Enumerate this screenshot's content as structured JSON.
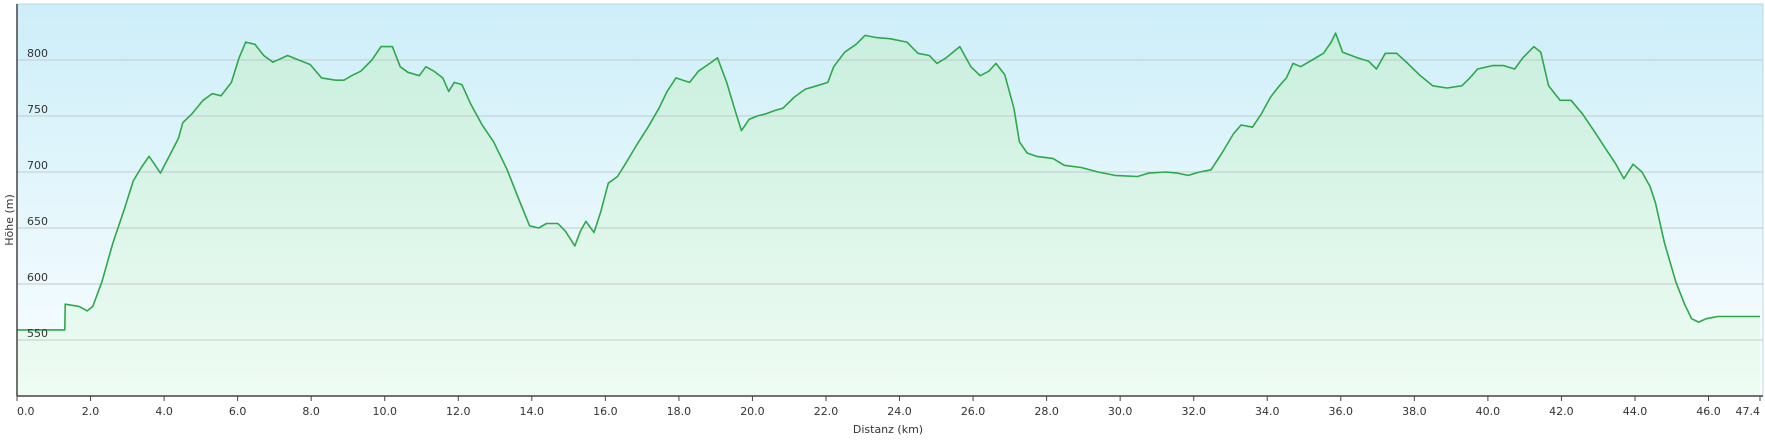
{
  "chart_data": {
    "type": "line",
    "xlabel": "Distanz  (km)",
    "ylabel": "Höhe (m)",
    "color": "#2ea84a",
    "grid": true,
    "xlim": [
      0,
      47.4
    ],
    "ylim": [
      500,
      850
    ],
    "xticks": [
      {
        "value": 0,
        "label": "0.0"
      },
      {
        "value": 2,
        "label": "2.0"
      },
      {
        "value": 4,
        "label": "4.0"
      },
      {
        "value": 6,
        "label": "6.0"
      },
      {
        "value": 8,
        "label": "8.0"
      },
      {
        "value": 10,
        "label": "10.0"
      },
      {
        "value": 12,
        "label": "12.0"
      },
      {
        "value": 14,
        "label": "14.0"
      },
      {
        "value": 16,
        "label": "16.0"
      },
      {
        "value": 18,
        "label": "18.0"
      },
      {
        "value": 20,
        "label": "20.0"
      },
      {
        "value": 22,
        "label": "22.0"
      },
      {
        "value": 24,
        "label": "24.0"
      },
      {
        "value": 26,
        "label": "26.0"
      },
      {
        "value": 28,
        "label": "28.0"
      },
      {
        "value": 30,
        "label": "30.0"
      },
      {
        "value": 32,
        "label": "32.0"
      },
      {
        "value": 34,
        "label": "34.0"
      },
      {
        "value": 36,
        "label": "36.0"
      },
      {
        "value": 38,
        "label": "38.0"
      },
      {
        "value": 40,
        "label": "40.0"
      },
      {
        "value": 42,
        "label": "42.0"
      },
      {
        "value": 44,
        "label": "44.0"
      },
      {
        "value": 46,
        "label": "46.0"
      },
      47.4
    ],
    "yticks": [
      550,
      600,
      650,
      700,
      750,
      800
    ],
    "x": [
      0,
      1.3,
      1.31,
      1.69,
      1.91,
      2.06,
      2.31,
      2.61,
      2.92,
      3.16,
      3.38,
      3.59,
      3.74,
      3.9,
      4.14,
      4.39,
      4.51,
      4.76,
      5.06,
      5.31,
      5.55,
      5.83,
      6.04,
      6.22,
      6.47,
      6.71,
      6.96,
      7.36,
      7.66,
      7.97,
      8.28,
      8.67,
      8.89,
      9.1,
      9.35,
      9.65,
      9.9,
      10.21,
      10.42,
      10.63,
      10.94,
      11.12,
      11.34,
      11.58,
      11.74,
      11.89,
      12.1,
      12.35,
      12.65,
      12.96,
      13.33,
      13.63,
      13.94,
      14.19,
      14.4,
      14.71,
      14.92,
      15.17,
      15.32,
      15.47,
      15.69,
      15.87,
      16.08,
      16.33,
      16.54,
      16.85,
      17.16,
      17.46,
      17.68,
      17.92,
      18.11,
      18.29,
      18.53,
      18.84,
      19.05,
      19.3,
      19.51,
      19.7,
      19.91,
      20.13,
      20.37,
      20.62,
      20.83,
      21.14,
      21.44,
      21.75,
      22.05,
      22.21,
      22.51,
      22.82,
      23.06,
      23.37,
      23.74,
      24.2,
      24.5,
      24.81,
      25.02,
      25.27,
      25.64,
      25.94,
      26.19,
      26.43,
      26.62,
      26.86,
      27.11,
      27.26,
      27.47,
      27.72,
      28.18,
      28.48,
      28.94,
      29.4,
      29.86,
      30.47,
      30.78,
      31.24,
      31.55,
      31.85,
      32.16,
      32.47,
      32.77,
      33.08,
      33.29,
      33.6,
      33.84,
      34.09,
      34.33,
      34.52,
      34.7,
      34.91,
      35.22,
      35.53,
      35.74,
      35.86,
      36.05,
      36.45,
      36.75,
      36.97,
      37.21,
      37.52,
      37.82,
      38.13,
      38.5,
      38.89,
      39.29,
      39.51,
      39.72,
      40.12,
      40.43,
      40.73,
      40.95,
      41.25,
      41.44,
      41.65,
      41.96,
      42.26,
      42.57,
      42.88,
      43.18,
      43.48,
      43.7,
      43.95,
      44.19,
      44.41,
      44.56,
      44.8,
      45.11,
      45.35,
      45.54,
      45.73,
      45.94,
      46.25,
      47.4
    ],
    "values": [
      559,
      559,
      582,
      580,
      576,
      580,
      602,
      637,
      667,
      692,
      704,
      714,
      707,
      699,
      714,
      730,
      744,
      752,
      764,
      770,
      768,
      780,
      802,
      816,
      814,
      804,
      798,
      804,
      800,
      796,
      784,
      782,
      782,
      786,
      790,
      800,
      812,
      812,
      794,
      789,
      786,
      794,
      790,
      784,
      772,
      780,
      778,
      760,
      742,
      727,
      702,
      677,
      652,
      650,
      654,
      654,
      647,
      634,
      647,
      656,
      646,
      664,
      690,
      696,
      707,
      724,
      740,
      757,
      772,
      784,
      782,
      780,
      790,
      797,
      802,
      780,
      757,
      737,
      747,
      750,
      752,
      755,
      757,
      767,
      774,
      777,
      780,
      794,
      807,
      814,
      822,
      820,
      819,
      816,
      806,
      804,
      797,
      802,
      812,
      794,
      786,
      790,
      797,
      787,
      757,
      727,
      717,
      714,
      712,
      706,
      704,
      700,
      697,
      696,
      699,
      700,
      699,
      697,
      700,
      702,
      717,
      734,
      742,
      740,
      752,
      767,
      777,
      784,
      797,
      794,
      800,
      806,
      816,
      824,
      807,
      802,
      799,
      792,
      806,
      806,
      797,
      787,
      777,
      775,
      777,
      784,
      792,
      795,
      795,
      792,
      802,
      812,
      807,
      777,
      764,
      764,
      752,
      737,
      722,
      707,
      694,
      707,
      700,
      687,
      672,
      637,
      602,
      582,
      569,
      566,
      569,
      571,
      571
    ]
  }
}
